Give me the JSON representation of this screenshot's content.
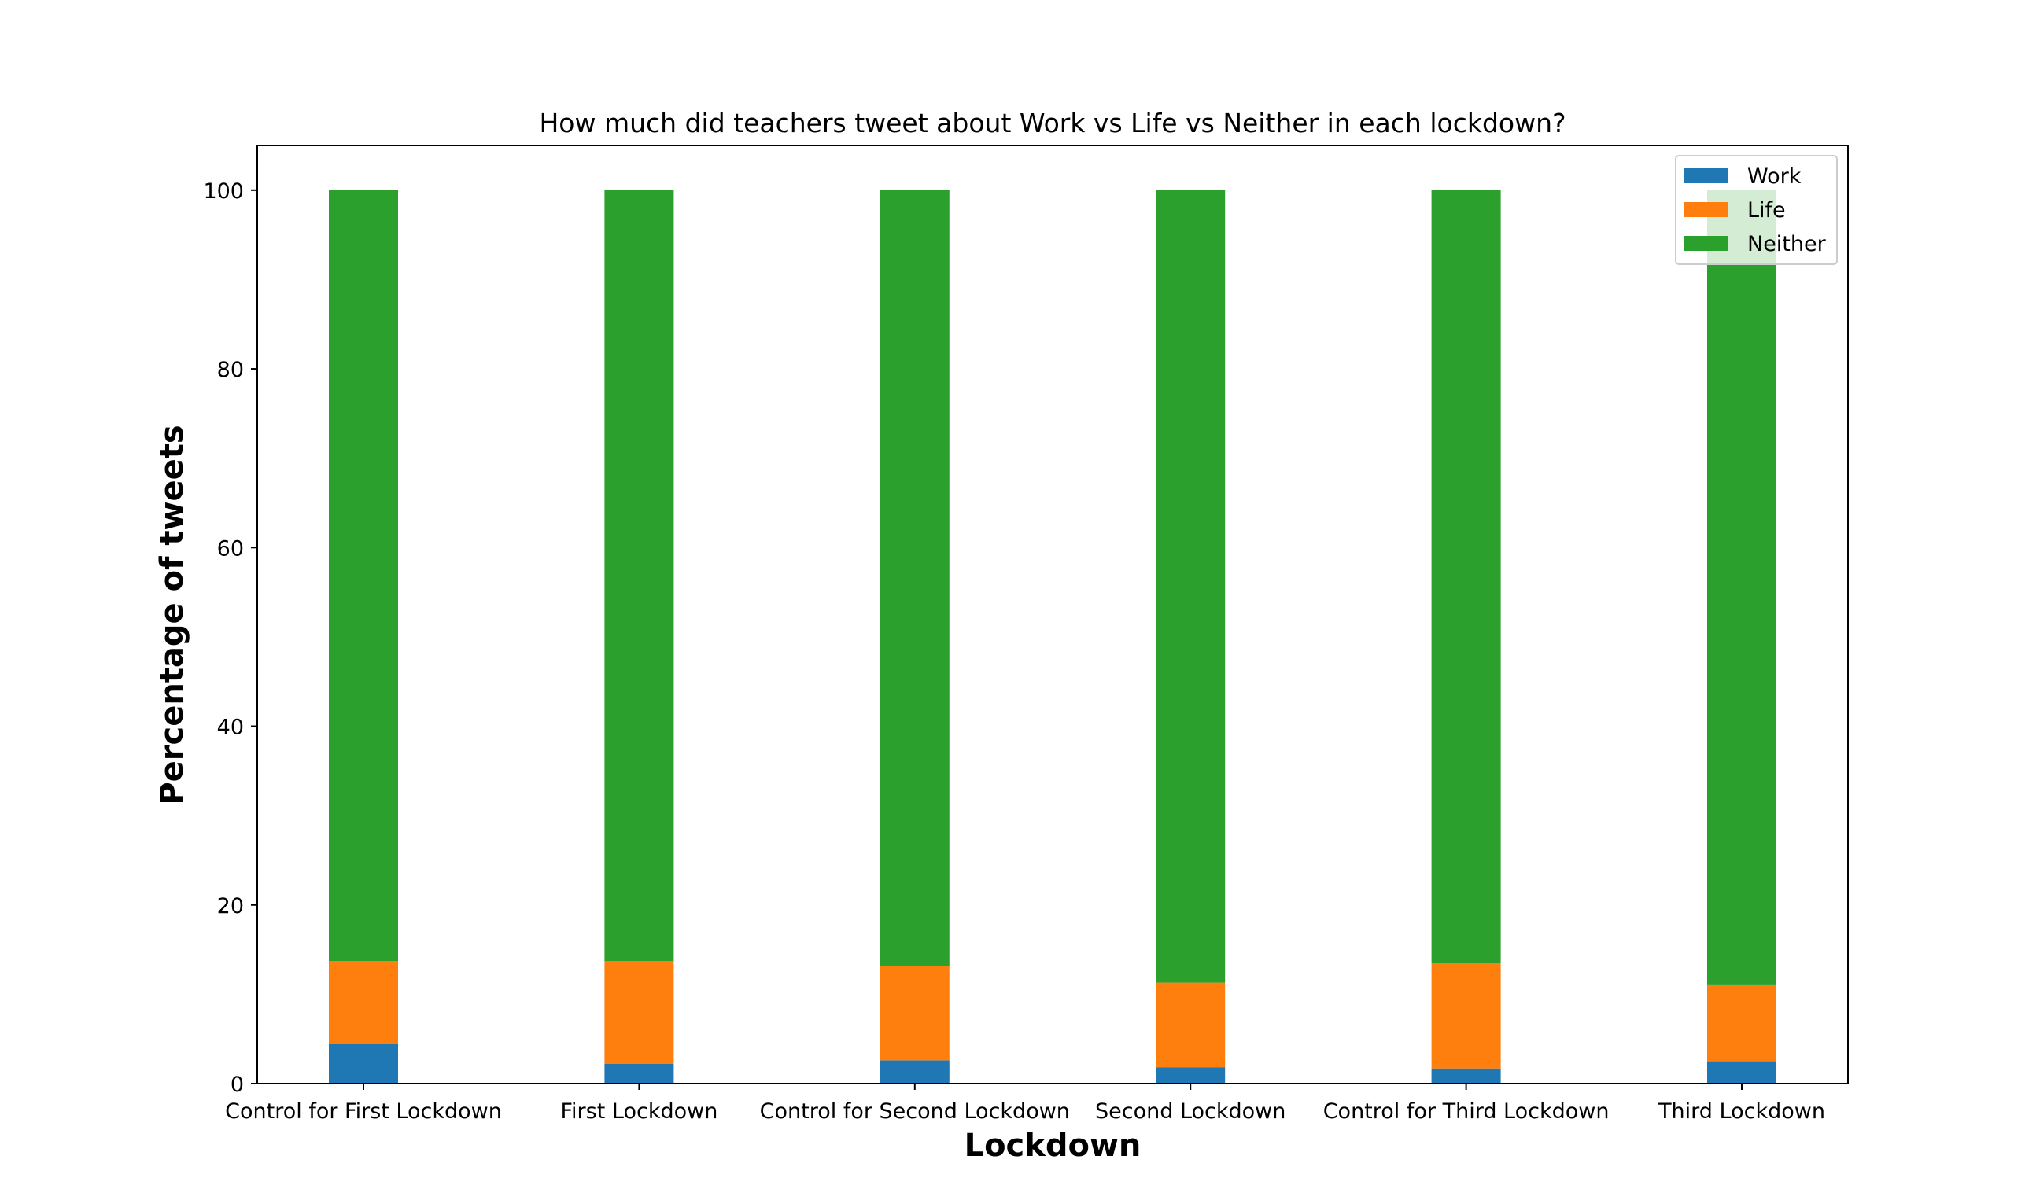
{
  "chart_data": {
    "type": "bar",
    "stacked": true,
    "title": "How much did teachers tweet about Work vs Life vs Neither in each lockdown?",
    "xlabel": "Lockdown",
    "ylabel": "Percentage of tweets",
    "categories": [
      "Control for First Lockdown",
      "First Lockdown",
      "Control for Second Lockdown",
      "Second Lockdown",
      "Control for Third Lockdown",
      "Third Lockdown"
    ],
    "series": [
      {
        "name": "Work",
        "color": "#1f77b4",
        "values": [
          4.4,
          2.2,
          2.6,
          1.8,
          1.7,
          2.5
        ]
      },
      {
        "name": "Life",
        "color": "#ff7f0e",
        "values": [
          9.3,
          11.5,
          10.6,
          9.5,
          11.8,
          8.6
        ]
      },
      {
        "name": "Neither",
        "color": "#2ca02c",
        "values": [
          86.3,
          86.3,
          86.8,
          88.7,
          86.5,
          88.9
        ]
      }
    ],
    "ylim": [
      0,
      105
    ],
    "yticks": [
      0,
      20,
      40,
      60,
      80,
      100
    ],
    "legend_position": "top-right",
    "grid": false
  }
}
